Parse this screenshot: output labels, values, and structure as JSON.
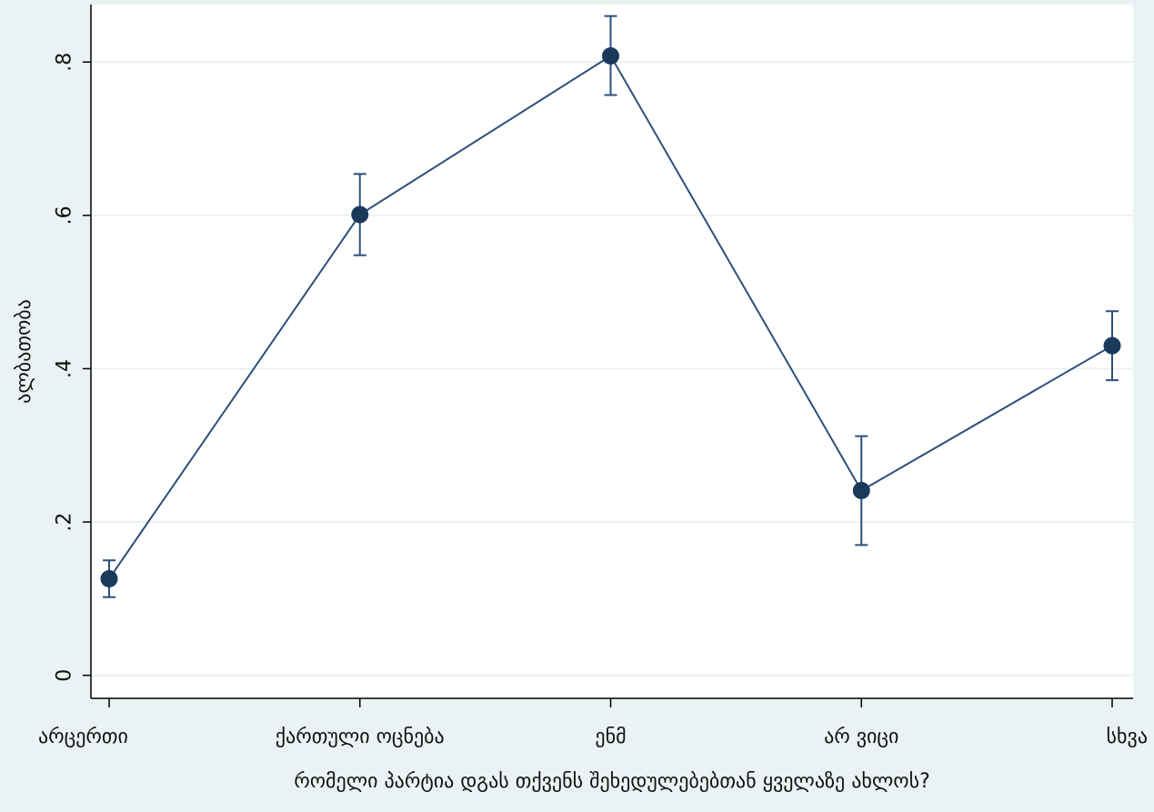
{
  "chart_data": {
    "type": "line",
    "xlabel": "რომელი პარტია დგას თქვენს შეხედულებებთან ყველაზე ახლოს?",
    "ylabel": "ალბათობა",
    "categories": [
      "არცერთი",
      "ქართული ოცნება",
      "ენმ",
      "არ ვიცი",
      "სხვა"
    ],
    "yticks": [
      {
        "value": 0,
        "label": "0"
      },
      {
        "value": 0.2,
        "label": ".2"
      },
      {
        "value": 0.4,
        "label": ".4"
      },
      {
        "value": 0.6,
        "label": ".6"
      },
      {
        "value": 0.8,
        "label": ".8"
      }
    ],
    "ylim": [
      -0.03,
      0.875
    ],
    "grid": true,
    "series": [
      {
        "values": [
          0.126,
          0.601,
          0.808,
          0.241,
          0.43
        ],
        "ci_lower": [
          0.102,
          0.548,
          0.757,
          0.17,
          0.385
        ],
        "ci_upper": [
          0.15,
          0.654,
          0.86,
          0.312,
          0.475
        ]
      }
    ],
    "colors": {
      "background": "#eaf2f3",
      "plot_background": "#ffffff",
      "grid": "#eaf2f3",
      "line": "#2c5079",
      "marker": "#1a3a5c",
      "axis": "#000000"
    }
  }
}
